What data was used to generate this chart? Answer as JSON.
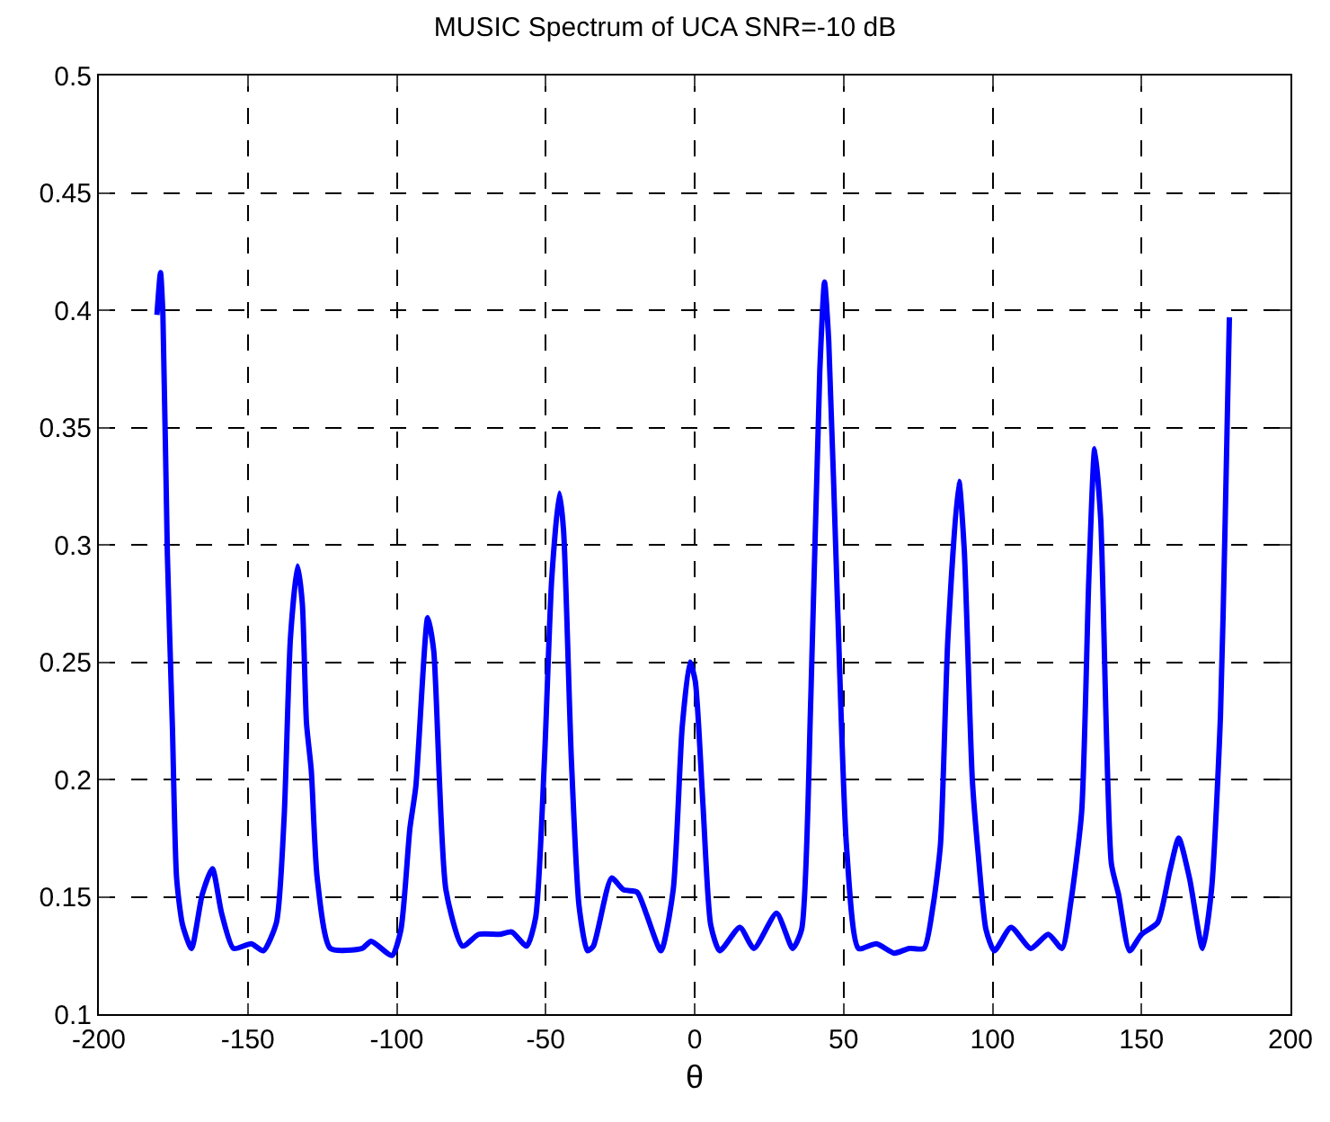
{
  "chart_data": {
    "type": "line",
    "title": "MUSIC Spectrum of UCA SNR=-10 dB",
    "xlabel": "θ",
    "x": [
      -180.5,
      -179.3,
      -178.5,
      -177,
      -175.3,
      -173.9,
      -171.9,
      -168.9,
      -165.3,
      -161.9,
      -158.8,
      -154.8,
      -148.8,
      -144.8,
      -140.4,
      -137.8,
      -135.7,
      -133.3,
      -131.7,
      -130.3,
      -128.7,
      -126.7,
      -122.3,
      -111.6,
      -108.6,
      -101.6,
      -98.6,
      -95.6,
      -93.6,
      -89.6,
      -87.6,
      -83.5,
      -77.9,
      -72.5,
      -65.5,
      -61.4,
      -56.4,
      -53.4,
      -50.4,
      -48,
      -45.4,
      -44,
      -41.4,
      -38.8,
      -36,
      -34,
      -27.9,
      -23.9,
      -19.3,
      -16.3,
      -11.3,
      -7.2,
      -4.2,
      -1.6,
      0.2,
      2.8,
      5.4,
      8.4,
      15.2,
      19.9,
      27.5,
      32.9,
      35.9,
      39,
      42,
      43.6,
      45,
      48,
      51,
      55,
      61,
      67,
      72,
      77,
      80,
      82.5,
      85,
      88.7,
      90.5,
      93.2,
      95.2,
      97.8,
      100.6,
      106.2,
      112.8,
      118.7,
      123.3,
      126.3,
      129.9,
      132.3,
      134.3,
      136.3,
      139.9,
      142.3,
      146,
      150,
      155.4,
      159.5,
      162.5,
      166.1,
      170.5,
      173.5,
      176.5,
      178.1,
      179.5
    ],
    "series": [
      {
        "color": "#0000ff",
        "values": [
          0.398,
          0.416,
          0.398,
          0.296,
          0.222,
          0.158,
          0.138,
          0.128,
          0.151,
          0.162,
          0.143,
          0.128,
          0.13,
          0.127,
          0.139,
          0.184,
          0.26,
          0.291,
          0.275,
          0.224,
          0.204,
          0.158,
          0.128,
          0.128,
          0.131,
          0.125,
          0.136,
          0.179,
          0.197,
          0.269,
          0.255,
          0.153,
          0.129,
          0.134,
          0.134,
          0.135,
          0.129,
          0.141,
          0.209,
          0.285,
          0.322,
          0.306,
          0.209,
          0.146,
          0.127,
          0.129,
          0.158,
          0.153,
          0.152,
          0.143,
          0.127,
          0.153,
          0.222,
          0.25,
          0.242,
          0.189,
          0.138,
          0.127,
          0.137,
          0.128,
          0.143,
          0.128,
          0.136,
          0.235,
          0.374,
          0.412,
          0.387,
          0.273,
          0.171,
          0.128,
          0.13,
          0.126,
          0.128,
          0.128,
          0.146,
          0.172,
          0.26,
          0.327,
          0.298,
          0.2,
          0.168,
          0.136,
          0.127,
          0.137,
          0.128,
          0.134,
          0.128,
          0.148,
          0.186,
          0.285,
          0.341,
          0.311,
          0.164,
          0.151,
          0.127,
          0.134,
          0.139,
          0.161,
          0.175,
          0.158,
          0.128,
          0.153,
          0.227,
          0.311,
          0.397
        ]
      }
    ],
    "xlim": [
      -200,
      200
    ],
    "xticks": [
      -200,
      -150,
      -100,
      -50,
      0,
      50,
      100,
      150,
      200
    ],
    "ylim": [
      0.1,
      0.5
    ],
    "yticks": [
      0.1,
      0.15,
      0.2,
      0.25,
      0.3,
      0.35,
      0.4,
      0.45,
      0.5
    ],
    "grid": true,
    "marker": "none",
    "line_style": "solid"
  }
}
